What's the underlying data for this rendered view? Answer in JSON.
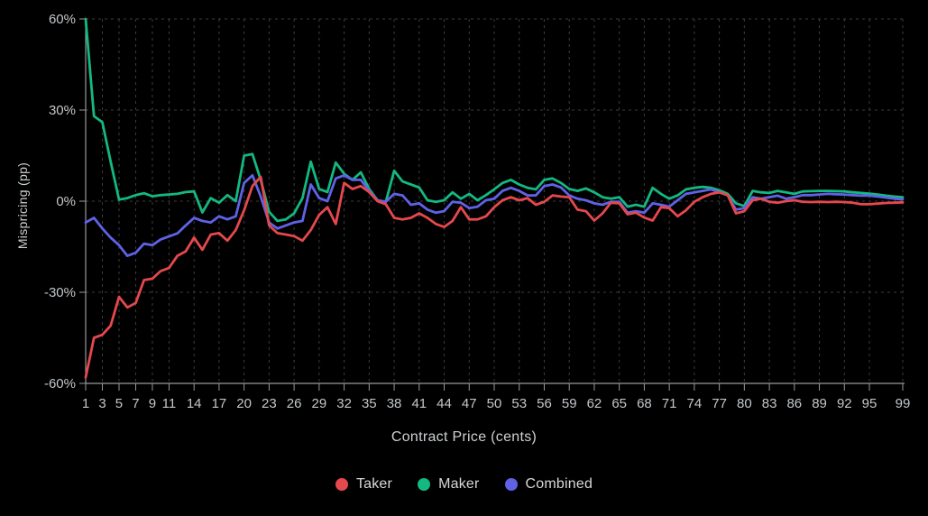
{
  "chart_data": {
    "type": "line",
    "title": "",
    "xlabel": "Contract Price (cents)",
    "ylabel": "Mispricing (pp)",
    "grid": true,
    "legend_position": "bottom",
    "ylim": [
      -60,
      60
    ],
    "xlim": [
      1,
      99
    ],
    "y_ticks": [
      {
        "label": "60%",
        "value": 60
      },
      {
        "label": "30%",
        "value": 30
      },
      {
        "label": "0%",
        "value": 0
      },
      {
        "label": "-30%",
        "value": -30
      },
      {
        "label": "-60%",
        "value": -60
      }
    ],
    "x_tick_labels": [
      1,
      3,
      5,
      7,
      9,
      11,
      14,
      17,
      20,
      23,
      26,
      29,
      32,
      35,
      38,
      41,
      44,
      47,
      50,
      53,
      56,
      59,
      62,
      65,
      68,
      71,
      74,
      77,
      80,
      83,
      86,
      89,
      92,
      95,
      99
    ],
    "x": [
      1,
      2,
      3,
      4,
      5,
      6,
      7,
      8,
      9,
      10,
      11,
      12,
      13,
      14,
      15,
      16,
      17,
      18,
      19,
      20,
      21,
      22,
      23,
      24,
      25,
      26,
      27,
      28,
      29,
      30,
      31,
      32,
      33,
      34,
      35,
      36,
      37,
      38,
      39,
      40,
      41,
      42,
      43,
      44,
      45,
      46,
      47,
      48,
      49,
      50,
      51,
      52,
      53,
      54,
      55,
      56,
      57,
      58,
      59,
      60,
      61,
      62,
      63,
      64,
      65,
      66,
      67,
      68,
      69,
      70,
      71,
      72,
      73,
      74,
      75,
      76,
      77,
      78,
      79,
      80,
      81,
      82,
      83,
      84,
      85,
      86,
      87,
      88,
      89,
      90,
      91,
      92,
      93,
      94,
      95,
      96,
      97,
      98,
      99
    ],
    "series": [
      {
        "name": "Taker",
        "color": "#e5484d",
        "values": [
          -58,
          -45,
          -44,
          -41,
          -31.5,
          -35,
          -33.5,
          -26,
          -25.5,
          -23,
          -22,
          -18,
          -16.5,
          -12,
          -16,
          -11,
          -10.5,
          -13,
          -9.5,
          -3,
          5,
          8,
          -8,
          -10.5,
          -11,
          -11.5,
          -13,
          -9.5,
          -4.5,
          -2,
          -7.5,
          6,
          4,
          5,
          3,
          0,
          -1,
          -5.5,
          -6,
          -5.5,
          -4,
          -5.5,
          -7.5,
          -8.5,
          -6.5,
          -2,
          -6,
          -6,
          -5,
          -2,
          0.3,
          1.3,
          0.3,
          1,
          -1.2,
          -0.2,
          1.9,
          1.5,
          1.3,
          -2.8,
          -3.3,
          -6.4,
          -4,
          -0.5,
          -0.7,
          -4.3,
          -3.8,
          -5.4,
          -6.4,
          -2,
          -2.3,
          -5,
          -3,
          -0.2,
          1.3,
          2.4,
          2.9,
          2,
          -4,
          -3.3,
          0.3,
          0.8,
          -0.2,
          -0.5,
          0,
          0.3,
          -0.2,
          -0.3,
          -0.2,
          -0.3,
          -0.2,
          -0.3,
          -0.5,
          -1,
          -1,
          -0.8,
          -0.6,
          -0.5,
          -0.4
        ]
      },
      {
        "name": "Maker",
        "color": "#14b881",
        "values": [
          60,
          28,
          26,
          13,
          0.5,
          1,
          2,
          2.6,
          1.6,
          2,
          2.2,
          2.4,
          3,
          3.2,
          -3.7,
          1,
          -0.5,
          2,
          0,
          15,
          15.5,
          7,
          -3.5,
          -6.5,
          -6,
          -4,
          1,
          13,
          4,
          3,
          12.7,
          9,
          7,
          9.5,
          4,
          0.3,
          -0.2,
          10,
          6.5,
          5.5,
          4.5,
          0.3,
          -0.2,
          0.3,
          2.9,
          0.8,
          2.4,
          0.3,
          2,
          3.9,
          6,
          7,
          5.5,
          4.4,
          3.9,
          7,
          7.5,
          6,
          4,
          3.4,
          4.2,
          2.9,
          1.3,
          0.8,
          1.3,
          -1.8,
          -1.2,
          -1.8,
          4.4,
          2.4,
          0.8,
          1.9,
          3.9,
          4.4,
          4.7,
          4.4,
          3.6,
          2.4,
          -0.7,
          -1.6,
          3.4,
          2.9,
          2.7,
          3.4,
          2.9,
          2.4,
          3.2,
          3.3,
          3.4,
          3.4,
          3.3,
          3.2,
          2.9,
          2.7,
          2.5,
          2.2,
          1.8,
          1.5,
          1.3
        ]
      },
      {
        "name": "Combined",
        "color": "#6062e6",
        "values": [
          -7,
          -5.5,
          -9,
          -12,
          -14.5,
          -18,
          -17,
          -14,
          -14.5,
          -12.6,
          -11.6,
          -10.6,
          -8,
          -5.5,
          -6.5,
          -7,
          -5,
          -6,
          -5,
          6,
          8.5,
          1.5,
          -7,
          -9,
          -8,
          -7,
          -6.5,
          5.5,
          1,
          0,
          7.5,
          8.5,
          7,
          7,
          3.4,
          0.3,
          -0.2,
          2.4,
          1.9,
          -1.2,
          -0.7,
          -2.8,
          -3.8,
          -3.3,
          -0.2,
          -0.5,
          -2.3,
          -1.8,
          0.3,
          0.8,
          3.4,
          4.4,
          3.4,
          1.9,
          1.9,
          5,
          5.5,
          4.5,
          1.9,
          0.8,
          0.3,
          -0.7,
          -1.2,
          -0.2,
          -0.2,
          -3.8,
          -3.3,
          -3.8,
          -0.7,
          -1.2,
          -1.8,
          0.3,
          2.4,
          2.9,
          3.4,
          3.9,
          2.9,
          1.9,
          -2.8,
          -2.3,
          1.3,
          0.8,
          1.3,
          1.8,
          0.8,
          1.3,
          2,
          2,
          2.2,
          2.4,
          2.3,
          2.2,
          2,
          1.8,
          1.8,
          1.5,
          1.2,
          0.8,
          0.6
        ]
      }
    ],
    "palette": {
      "background": "#000000",
      "grid": "#3d3d3d",
      "axis": "#9a9a9a",
      "tick_text": "#c3c7cb",
      "title_text": "#cdd0d3",
      "legend_text": "#d6d8da"
    }
  }
}
